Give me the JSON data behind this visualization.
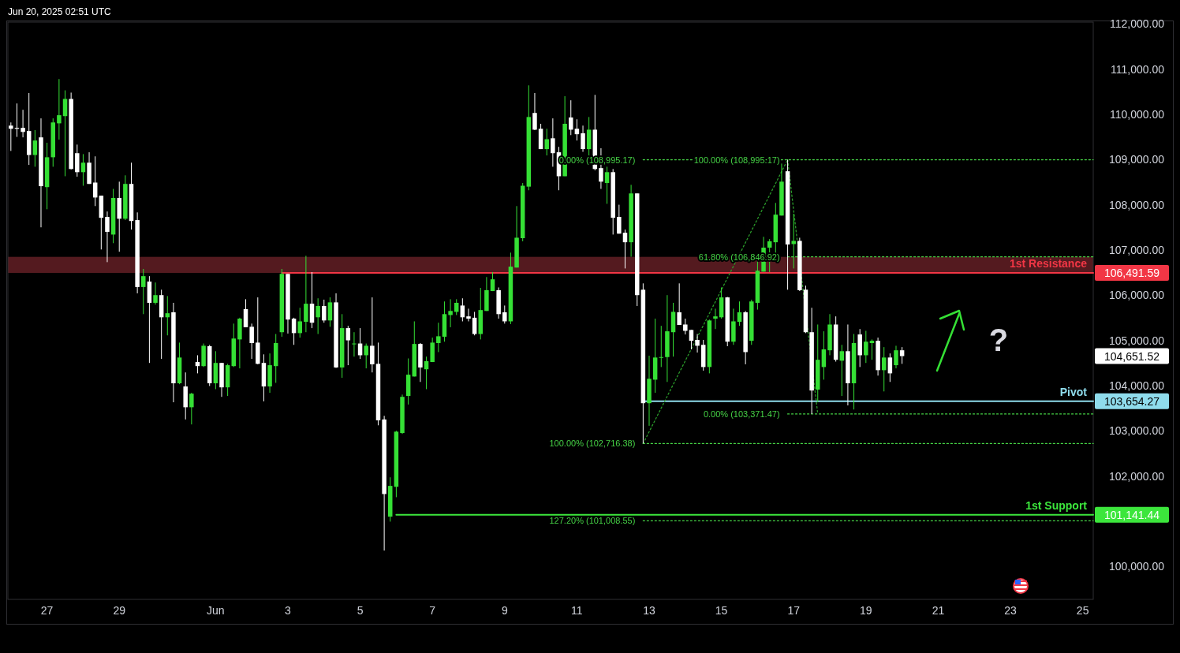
{
  "chart_data": {
    "type": "candlestick",
    "title": "Jun 20, 2025 02:51 UTC",
    "x": [
      "2025-05-26T08:00",
      "2025-05-26T12:00",
      "2025-05-26T16:00",
      "2025-05-26T20:00",
      "2025-05-27T00:00",
      "2025-05-27T04:00",
      "2025-05-27T08:00",
      "2025-05-27T12:00",
      "2025-05-27T16:00",
      "2025-05-27T20:00",
      "2025-05-28T00:00",
      "2025-05-28T04:00",
      "2025-05-28T08:00",
      "2025-05-28T12:00",
      "2025-05-28T16:00",
      "2025-05-28T20:00",
      "2025-05-29T00:00",
      "2025-05-29T04:00",
      "2025-05-29T08:00",
      "2025-05-29T12:00",
      "2025-05-29T16:00",
      "2025-05-29T20:00",
      "2025-05-30T00:00",
      "2025-05-30T04:00",
      "2025-05-30T08:00",
      "2025-05-30T12:00",
      "2025-05-30T16:00",
      "2025-05-30T20:00",
      "2025-05-31T00:00",
      "2025-05-31T04:00",
      "2025-05-31T08:00",
      "2025-05-31T12:00",
      "2025-05-31T16:00",
      "2025-05-31T20:00",
      "2025-06-01T00:00",
      "2025-06-01T04:00",
      "2025-06-01T08:00",
      "2025-06-01T12:00",
      "2025-06-01T16:00",
      "2025-06-01T20:00",
      "2025-06-02T00:00",
      "2025-06-02T04:00",
      "2025-06-02T08:00",
      "2025-06-02T12:00",
      "2025-06-02T16:00",
      "2025-06-02T20:00",
      "2025-06-03T00:00",
      "2025-06-03T04:00",
      "2025-06-03T08:00",
      "2025-06-03T12:00",
      "2025-06-03T16:00",
      "2025-06-03T20:00",
      "2025-06-04T00:00",
      "2025-06-04T04:00",
      "2025-06-04T08:00",
      "2025-06-04T12:00",
      "2025-06-04T16:00",
      "2025-06-04T20:00",
      "2025-06-05T00:00",
      "2025-06-05T04:00",
      "2025-06-05T08:00",
      "2025-06-05T12:00",
      "2025-06-05T16:00",
      "2025-06-05T20:00",
      "2025-06-06T00:00",
      "2025-06-06T04:00",
      "2025-06-06T08:00",
      "2025-06-06T12:00",
      "2025-06-06T16:00",
      "2025-06-06T20:00",
      "2025-06-07T00:00",
      "2025-06-07T04:00",
      "2025-06-07T08:00",
      "2025-06-07T12:00",
      "2025-06-07T16:00",
      "2025-06-07T20:00",
      "2025-06-08T00:00",
      "2025-06-08T04:00",
      "2025-06-08T08:00",
      "2025-06-08T12:00",
      "2025-06-08T16:00",
      "2025-06-08T20:00",
      "2025-06-09T00:00",
      "2025-06-09T04:00",
      "2025-06-09T08:00",
      "2025-06-09T12:00",
      "2025-06-09T16:00",
      "2025-06-09T20:00",
      "2025-06-10T00:00",
      "2025-06-10T04:00",
      "2025-06-10T08:00",
      "2025-06-10T12:00",
      "2025-06-10T16:00",
      "2025-06-10T20:00",
      "2025-06-11T00:00",
      "2025-06-11T04:00",
      "2025-06-11T08:00",
      "2025-06-11T12:00",
      "2025-06-11T16:00",
      "2025-06-11T20:00",
      "2025-06-12T00:00",
      "2025-06-12T04:00",
      "2025-06-12T08:00",
      "2025-06-12T12:00",
      "2025-06-12T16:00",
      "2025-06-12T20:00",
      "2025-06-13T00:00",
      "2025-06-13T04:00",
      "2025-06-13T08:00",
      "2025-06-13T12:00",
      "2025-06-13T16:00",
      "2025-06-13T20:00",
      "2025-06-14T00:00",
      "2025-06-14T04:00",
      "2025-06-14T08:00",
      "2025-06-14T12:00",
      "2025-06-14T16:00",
      "2025-06-14T20:00",
      "2025-06-15T00:00",
      "2025-06-15T04:00",
      "2025-06-15T08:00",
      "2025-06-15T12:00",
      "2025-06-15T16:00",
      "2025-06-15T20:00",
      "2025-06-16T00:00",
      "2025-06-16T04:00",
      "2025-06-16T08:00",
      "2025-06-16T12:00",
      "2025-06-16T16:00",
      "2025-06-16T20:00",
      "2025-06-17T00:00",
      "2025-06-17T04:00",
      "2025-06-17T08:00",
      "2025-06-17T12:00",
      "2025-06-17T16:00",
      "2025-06-17T20:00",
      "2025-06-18T00:00",
      "2025-06-18T04:00",
      "2025-06-18T08:00",
      "2025-06-18T12:00",
      "2025-06-18T16:00",
      "2025-06-18T20:00",
      "2025-06-19T00:00",
      "2025-06-19T04:00",
      "2025-06-19T08:00",
      "2025-06-19T12:00",
      "2025-06-19T16:00",
      "2025-06-19T20:00",
      "2025-06-20T00:00"
    ],
    "ohlc": [
      [
        109750,
        109820,
        109190,
        109680
      ],
      [
        109700,
        110240,
        109500,
        109680
      ],
      [
        109700,
        110100,
        109490,
        109610
      ],
      [
        109630,
        110470,
        108880,
        109100
      ],
      [
        109100,
        109650,
        108840,
        109420
      ],
      [
        109490,
        109910,
        107500,
        108410
      ],
      [
        108390,
        109370,
        107900,
        109050
      ],
      [
        109050,
        109910,
        108840,
        109820
      ],
      [
        109800,
        110780,
        109440,
        109980
      ],
      [
        109960,
        110530,
        108630,
        110340
      ],
      [
        110340,
        110480,
        108780,
        108790
      ],
      [
        109140,
        109330,
        108620,
        108720
      ],
      [
        108720,
        109120,
        108420,
        108930
      ],
      [
        108930,
        109160,
        108460,
        108460
      ],
      [
        108490,
        109070,
        107970,
        108160
      ],
      [
        108200,
        108200,
        107010,
        107710
      ],
      [
        107730,
        107850,
        106730,
        107400
      ],
      [
        107340,
        108350,
        107150,
        108150
      ],
      [
        108150,
        108510,
        106960,
        107690
      ],
      [
        107690,
        108650,
        107660,
        108460
      ],
      [
        108460,
        108930,
        107450,
        107640
      ],
      [
        107660,
        107830,
        106040,
        106180
      ],
      [
        106180,
        106580,
        105580,
        106420
      ],
      [
        106300,
        106420,
        104500,
        105830
      ],
      [
        105830,
        106280,
        105790,
        106000
      ],
      [
        106000,
        106120,
        104590,
        105510
      ],
      [
        105510,
        105980,
        105110,
        105600
      ],
      [
        105620,
        105830,
        103630,
        104050
      ],
      [
        104050,
        104950,
        104030,
        104620
      ],
      [
        103980,
        104290,
        103250,
        103520
      ],
      [
        103520,
        103840,
        103140,
        103820
      ],
      [
        104520,
        104670,
        104270,
        104430
      ],
      [
        104430,
        104930,
        104410,
        104880
      ],
      [
        104870,
        104900,
        103990,
        104050
      ],
      [
        104050,
        104760,
        103920,
        104500
      ],
      [
        104500,
        104500,
        103750,
        103960
      ],
      [
        103960,
        104480,
        103770,
        104450
      ],
      [
        104430,
        105370,
        104410,
        105040
      ],
      [
        105020,
        105500,
        104380,
        105480
      ],
      [
        105690,
        105910,
        105290,
        105290
      ],
      [
        105300,
        105370,
        104590,
        104940
      ],
      [
        104950,
        105950,
        104470,
        104480
      ],
      [
        104500,
        104690,
        103650,
        103980
      ],
      [
        103980,
        104710,
        103840,
        104450
      ],
      [
        104430,
        105140,
        104060,
        104940
      ],
      [
        105180,
        106580,
        105080,
        106470
      ],
      [
        106470,
        106470,
        105150,
        105460
      ],
      [
        105480,
        105500,
        104900,
        105160
      ],
      [
        105160,
        105720,
        105060,
        105420
      ],
      [
        105410,
        106870,
        105180,
        105810
      ],
      [
        105810,
        106510,
        105270,
        105390
      ],
      [
        105510,
        105930,
        105140,
        105760
      ],
      [
        105760,
        105900,
        105390,
        105440
      ],
      [
        105440,
        105950,
        105300,
        105840
      ],
      [
        105840,
        106040,
        104390,
        104400
      ],
      [
        104400,
        105580,
        104170,
        105270
      ],
      [
        105270,
        105320,
        104450,
        105000
      ],
      [
        104920,
        105180,
        104640,
        104930
      ],
      [
        104930,
        105270,
        104590,
        104670
      ],
      [
        104670,
        104930,
        104380,
        104880
      ],
      [
        104880,
        105950,
        104290,
        104470
      ],
      [
        104480,
        104950,
        103120,
        103230
      ],
      [
        103250,
        103330,
        100350,
        101600
      ],
      [
        101100,
        101970,
        100990,
        101780
      ],
      [
        101760,
        103000,
        101530,
        102980
      ],
      [
        102950,
        103800,
        102930,
        103750
      ],
      [
        103770,
        104600,
        103580,
        104240
      ],
      [
        104200,
        105420,
        104200,
        104920
      ],
      [
        104920,
        104940,
        104080,
        104400
      ],
      [
        104360,
        104640,
        103920,
        104540
      ],
      [
        104520,
        105060,
        104520,
        104950
      ],
      [
        104940,
        105390,
        104740,
        105090
      ],
      [
        105080,
        105860,
        104970,
        105580
      ],
      [
        105560,
        105910,
        105290,
        105650
      ],
      [
        105630,
        105910,
        105560,
        105830
      ],
      [
        105770,
        105930,
        105420,
        105510
      ],
      [
        105530,
        105700,
        105420,
        105480
      ],
      [
        105500,
        105630,
        105110,
        105140
      ],
      [
        105140,
        106160,
        105020,
        105670
      ],
      [
        105650,
        106400,
        105650,
        106110
      ],
      [
        106090,
        106510,
        106090,
        106350
      ],
      [
        106110,
        106170,
        105480,
        105580
      ],
      [
        105620,
        105770,
        105370,
        105420
      ],
      [
        105420,
        106940,
        105360,
        106630
      ],
      [
        106610,
        107970,
        106610,
        107270
      ],
      [
        107260,
        108480,
        107190,
        108420
      ],
      [
        108400,
        110640,
        108320,
        109940
      ],
      [
        110030,
        110470,
        109650,
        109660
      ],
      [
        109680,
        109790,
        109230,
        109230
      ],
      [
        109230,
        109680,
        109090,
        109450
      ],
      [
        109470,
        109910,
        108840,
        109140
      ],
      [
        109160,
        109280,
        108320,
        108630
      ],
      [
        108630,
        110400,
        108630,
        109790
      ],
      [
        109930,
        110310,
        109540,
        109660
      ],
      [
        109680,
        109890,
        109420,
        109560
      ],
      [
        109580,
        109750,
        109170,
        109230
      ],
      [
        109230,
        109940,
        109000,
        109660
      ],
      [
        109660,
        110430,
        108760,
        108790
      ],
      [
        108810,
        109250,
        108350,
        108510
      ],
      [
        108480,
        108840,
        108020,
        108720
      ],
      [
        108720,
        108790,
        107340,
        107710
      ],
      [
        107730,
        108000,
        107360,
        107360
      ],
      [
        107380,
        107450,
        106590,
        107170
      ],
      [
        107170,
        108440,
        106850,
        108250
      ],
      [
        108250,
        108250,
        105760,
        106000
      ],
      [
        106120,
        106260,
        102716.38,
        103610
      ],
      [
        103610,
        104660,
        103110,
        104150
      ],
      [
        104130,
        105480,
        103840,
        104620
      ],
      [
        104620,
        105320,
        104410,
        104630
      ],
      [
        104630,
        106000,
        104080,
        105200
      ],
      [
        105180,
        105830,
        104640,
        105630
      ],
      [
        105620,
        106260,
        105340,
        105340
      ],
      [
        105350,
        105480,
        105130,
        105210
      ],
      [
        105230,
        105230,
        104800,
        104990
      ],
      [
        105010,
        105140,
        104730,
        104880
      ],
      [
        104900,
        105010,
        104330,
        104410
      ],
      [
        104410,
        105460,
        104270,
        105440
      ],
      [
        105480,
        105700,
        105250,
        105530
      ],
      [
        105510,
        106170,
        105480,
        105950
      ],
      [
        105950,
        105960,
        104870,
        104970
      ],
      [
        104970,
        105700,
        104900,
        105420
      ],
      [
        105410,
        105860,
        105320,
        105620
      ],
      [
        105620,
        105650,
        104470,
        104740
      ],
      [
        104990,
        105900,
        104900,
        105860
      ],
      [
        105830,
        106770,
        105680,
        106540
      ],
      [
        106520,
        107290,
        106520,
        107050
      ],
      [
        107050,
        107240,
        106510,
        107190
      ],
      [
        107170,
        108040,
        106920,
        107780
      ],
      [
        107760,
        108910,
        107760,
        108510
      ],
      [
        108740,
        108995.17,
        106120,
        107120
      ],
      [
        107130,
        107800,
        106590,
        107200
      ],
      [
        107200,
        107270,
        106090,
        106110
      ],
      [
        106120,
        106210,
        105160,
        105180
      ],
      [
        105180,
        105720,
        103371.47,
        103890
      ],
      [
        103910,
        105350,
        103630,
        104570
      ],
      [
        104410,
        105200,
        104130,
        104800
      ],
      [
        104780,
        105580,
        104670,
        105350
      ],
      [
        105350,
        105530,
        104530,
        104570
      ],
      [
        104550,
        104900,
        103770,
        104760
      ],
      [
        104760,
        105350,
        103560,
        104050
      ],
      [
        104050,
        105140,
        103470,
        104940
      ],
      [
        105130,
        105250,
        104410,
        104670
      ],
      [
        104670,
        105210,
        104500,
        104970
      ],
      [
        104940,
        105020,
        104570,
        104990
      ],
      [
        104990,
        105060,
        104220,
        104340
      ],
      [
        104340,
        104850,
        103870,
        104620
      ],
      [
        104620,
        104710,
        104080,
        104270
      ],
      [
        104450,
        104880,
        104380,
        104780
      ],
      [
        104780,
        104850,
        104480,
        104651.52
      ]
    ],
    "colors": [
      "#ffffff",
      "#ffffff",
      "#ffffff",
      "#ffffff",
      "#35e035",
      "#ffffff",
      "#35e035",
      "#35e035",
      "#35e035",
      "#35e035",
      "#ffffff",
      "#ffffff",
      "#35e035",
      "#ffffff",
      "#ffffff",
      "#ffffff",
      "#ffffff",
      "#35e035",
      "#ffffff",
      "#35e035",
      "#ffffff",
      "#ffffff",
      "#35e035",
      "#ffffff",
      "#35e035",
      "#ffffff",
      "#35e035",
      "#ffffff",
      "#35e035",
      "#ffffff",
      "#35e035",
      "#ffffff",
      "#35e035",
      "#ffffff",
      "#35e035",
      "#ffffff",
      "#35e035",
      "#35e035",
      "#35e035",
      "#ffffff",
      "#ffffff",
      "#ffffff",
      "#ffffff",
      "#35e035",
      "#35e035",
      "#35e035",
      "#ffffff",
      "#ffffff",
      "#35e035",
      "#35e035",
      "#ffffff",
      "#35e035",
      "#ffffff",
      "#35e035",
      "#ffffff",
      "#35e035",
      "#ffffff",
      "#35e035",
      "#ffffff",
      "#35e035",
      "#ffffff",
      "#ffffff",
      "#ffffff",
      "#35e035",
      "#35e035",
      "#35e035",
      "#35e035",
      "#35e035",
      "#ffffff",
      "#35e035",
      "#35e035",
      "#35e035",
      "#35e035",
      "#35e035",
      "#35e035",
      "#ffffff",
      "#ffffff",
      "#ffffff",
      "#35e035",
      "#35e035",
      "#35e035",
      "#ffffff",
      "#ffffff",
      "#35e035",
      "#35e035",
      "#35e035",
      "#35e035",
      "#ffffff",
      "#ffffff",
      "#35e035",
      "#ffffff",
      "#ffffff",
      "#35e035",
      "#ffffff",
      "#ffffff",
      "#ffffff",
      "#35e035",
      "#ffffff",
      "#ffffff",
      "#35e035",
      "#ffffff",
      "#ffffff",
      "#ffffff",
      "#35e035",
      "#ffffff",
      "#ffffff",
      "#35e035",
      "#35e035",
      "#35e035",
      "#35e035",
      "#35e035",
      "#ffffff",
      "#ffffff",
      "#ffffff",
      "#ffffff",
      "#ffffff",
      "#35e035",
      "#35e035",
      "#35e035",
      "#ffffff",
      "#35e035",
      "#35e035",
      "#ffffff",
      "#35e035",
      "#35e035",
      "#35e035",
      "#35e035",
      "#35e035",
      "#35e035",
      "#ffffff",
      "#35e035",
      "#ffffff",
      "#ffffff",
      "#ffffff",
      "#35e035",
      "#35e035",
      "#35e035",
      "#ffffff",
      "#35e035",
      "#ffffff",
      "#35e035",
      "#ffffff",
      "#35e035",
      "#35e035",
      "#ffffff",
      "#35e035",
      "#ffffff",
      "#35e035",
      "#ffffff"
    ],
    "series": [
      {
        "type": "line",
        "name": "1st Resistance",
        "color": "#f23645",
        "line_style": "solid",
        "x": [
          "2025-06-02T20:00",
          "2025-06-25T07:00"
        ],
        "values": [
          106491.59,
          106491.59
        ]
      },
      {
        "type": "line",
        "name": "Pivot",
        "color": "#8fdcec",
        "line_style": "solid",
        "x": [
          "2025-06-12T20:00",
          "2025-06-25T07:00"
        ],
        "values": [
          103654.27,
          103654.27
        ]
      },
      {
        "type": "line",
        "name": "1st Support",
        "color": "#3ce63c",
        "line_style": "solid",
        "x": [
          "2025-06-06T00:00",
          "2025-06-25T07:00"
        ],
        "values": [
          101141.44,
          101141.44
        ]
      },
      {
        "type": "line",
        "color": "#45d145",
        "line_style": "dotted",
        "x": [
          "2025-06-12T20:00",
          "2025-06-25T07:00"
        ],
        "values": [
          108995.17,
          108995.17
        ]
      },
      {
        "type": "line",
        "color": "#45d145",
        "line_style": "dotted",
        "x": [
          "2025-06-16T20:00",
          "2025-06-25T07:00"
        ],
        "values": [
          106846.92,
          106846.92
        ]
      },
      {
        "type": "line",
        "color": "#45d145",
        "line_style": "dotted",
        "x": [
          "2025-06-16T20:00",
          "2025-06-25T07:00"
        ],
        "values": [
          103371.47,
          103371.47
        ]
      },
      {
        "type": "line",
        "color": "#45d145",
        "line_style": "dotted",
        "x": [
          "2025-06-12T20:00",
          "2025-06-25T07:00"
        ],
        "values": [
          102716.38,
          102716.38
        ]
      },
      {
        "type": "line",
        "color": "#45d145",
        "line_style": "dotted",
        "x": [
          "2025-06-12T20:00",
          "2025-06-25T07:00"
        ],
        "values": [
          101008.55,
          101008.55
        ]
      },
      {
        "type": "line",
        "color": "#2a9a2a",
        "line_style": "dotted",
        "x": [
          "2025-06-12T20:00",
          "2025-06-16T20:00"
        ],
        "values": [
          102716.38,
          108995.17
        ]
      },
      {
        "type": "line",
        "color": "#2a9a2a",
        "line_style": "dotted",
        "x": [
          "2025-06-16T20:00",
          "2025-06-17T16:00"
        ],
        "values": [
          108995.17,
          103371.47
        ]
      }
    ],
    "bands": [
      {
        "axis": "y",
        "from": 106491.59,
        "to": 106846.92,
        "color": "#541a1f"
      }
    ],
    "annotations": [
      {
        "text": "106,491.59",
        "x": "2025-06-25T07:00",
        "y": 106491.59
      },
      "104,651.52",
      {
        "text": "103,654.27",
        "x": "2025-06-25T07:00",
        "y": 103654.27
      },
      {
        "text": "101,141.44",
        "x": "2025-06-25T07:00",
        "y": 101141.44
      },
      {
        "text": "0.00% (108,995.17)",
        "x": "2025-06-12T20:00",
        "y": 108995.17
      },
      {
        "text": "100.00% (108,995.17)",
        "x": "2025-06-16T20:00",
        "y": 108995.17
      },
      {
        "text": "61.80% (106,846.92)",
        "x": "2025-06-16T20:00",
        "y": 106846.92
      },
      {
        "text": "0.00% (103,371.47)",
        "x": "2025-06-16T20:00",
        "y": 103371.47
      },
      {
        "text": "100.00% (102,716.38)",
        "x": "2025-06-12T20:00",
        "y": 102716.38
      },
      {
        "text": "127.20% (101,008.55)",
        "x": "2025-06-12T20:00",
        "y": 101008.55
      },
      "?"
    ],
    "xlim": [
      "2025-05-26T06:00",
      "2025-06-25T07:00"
    ],
    "xticks": [
      {
        "value": "2025-05-27T08:00",
        "label": "27"
      },
      {
        "value": "2025-05-29T08:00",
        "label": "29"
      },
      {
        "value": "2025-06-01",
        "label": "Jun"
      },
      {
        "value": "2025-06-03",
        "label": "3"
      },
      {
        "value": "2025-06-05",
        "label": "5"
      },
      {
        "value": "2025-06-07",
        "label": "7"
      },
      {
        "value": "2025-06-09",
        "label": "9"
      },
      {
        "value": "2025-06-11",
        "label": "11"
      },
      {
        "value": "2025-06-13",
        "label": "13"
      },
      {
        "value": "2025-06-15",
        "label": "15"
      },
      {
        "value": "2025-06-17",
        "label": "17"
      },
      {
        "value": "2025-06-19",
        "label": "19"
      },
      {
        "value": "2025-06-21",
        "label": "21"
      },
      {
        "value": "2025-06-23",
        "label": "23"
      },
      {
        "value": "2025-06-25",
        "label": "25"
      }
    ],
    "ylim": [
      99270,
      112040
    ],
    "yticks": [
      {
        "value": 100000,
        "label": "100,000.00"
      },
      {
        "value": 102000,
        "label": "102,000.00"
      },
      {
        "value": 103000,
        "label": "103,000.00"
      },
      {
        "value": 104000,
        "label": "104,000.00"
      },
      {
        "value": 105000,
        "label": "105,000.00"
      },
      {
        "value": 106000,
        "label": "106,000.00"
      },
      {
        "value": 107000,
        "label": "107,000.00"
      },
      {
        "value": 108000,
        "label": "108,000.00"
      },
      {
        "value": 109000,
        "label": "109,000.00"
      },
      {
        "value": 110000,
        "label": "110,000.00"
      },
      {
        "value": 111000,
        "label": "111,000.00"
      },
      {
        "value": 112000,
        "label": "112,000.00"
      }
    ]
  }
}
